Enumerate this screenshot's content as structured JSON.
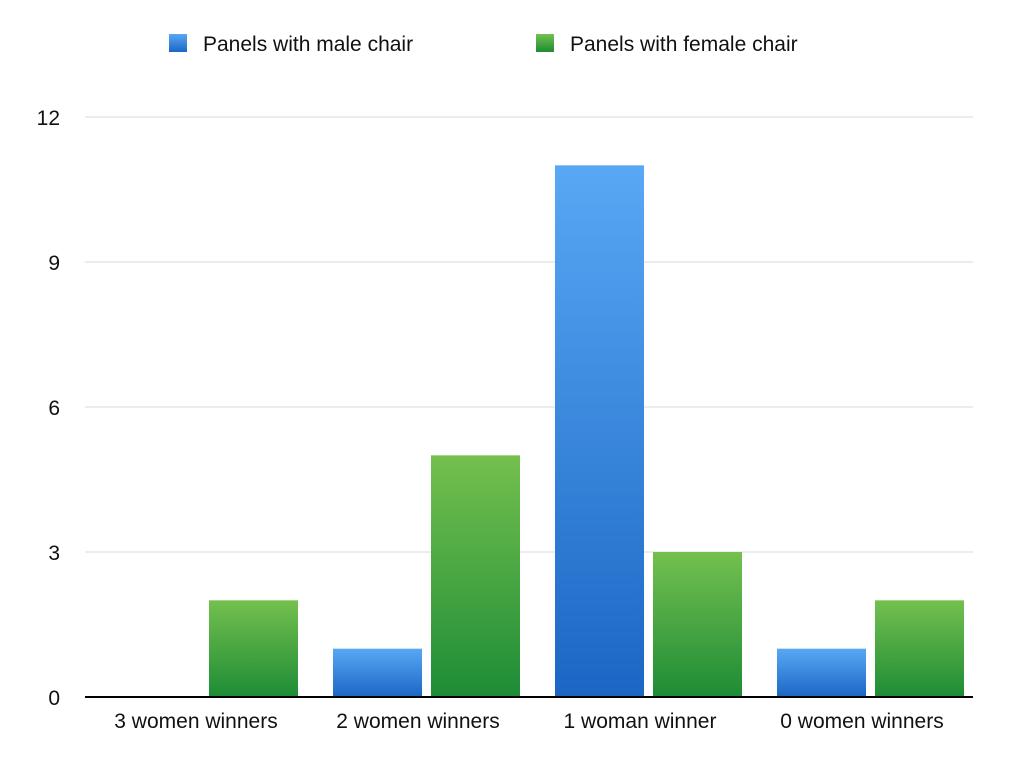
{
  "chart_data": {
    "type": "bar",
    "categories": [
      "3 women winners",
      "2 women winners",
      "1 woman winner",
      "0 women winners"
    ],
    "series": [
      {
        "name": "Panels with male chair",
        "values": [
          0,
          1,
          11,
          1
        ],
        "color_top": "#58a8f5",
        "color_bottom": "#1b66c4"
      },
      {
        "name": "Panels with female chair",
        "values": [
          2,
          5,
          3,
          2
        ],
        "color_top": "#74c04e",
        "color_bottom": "#1d8c36"
      }
    ],
    "y_ticks": [
      "0",
      "3",
      "6",
      "9",
      "12"
    ],
    "ylim": [
      0,
      12
    ],
    "grid": true,
    "legend_position": "top"
  }
}
